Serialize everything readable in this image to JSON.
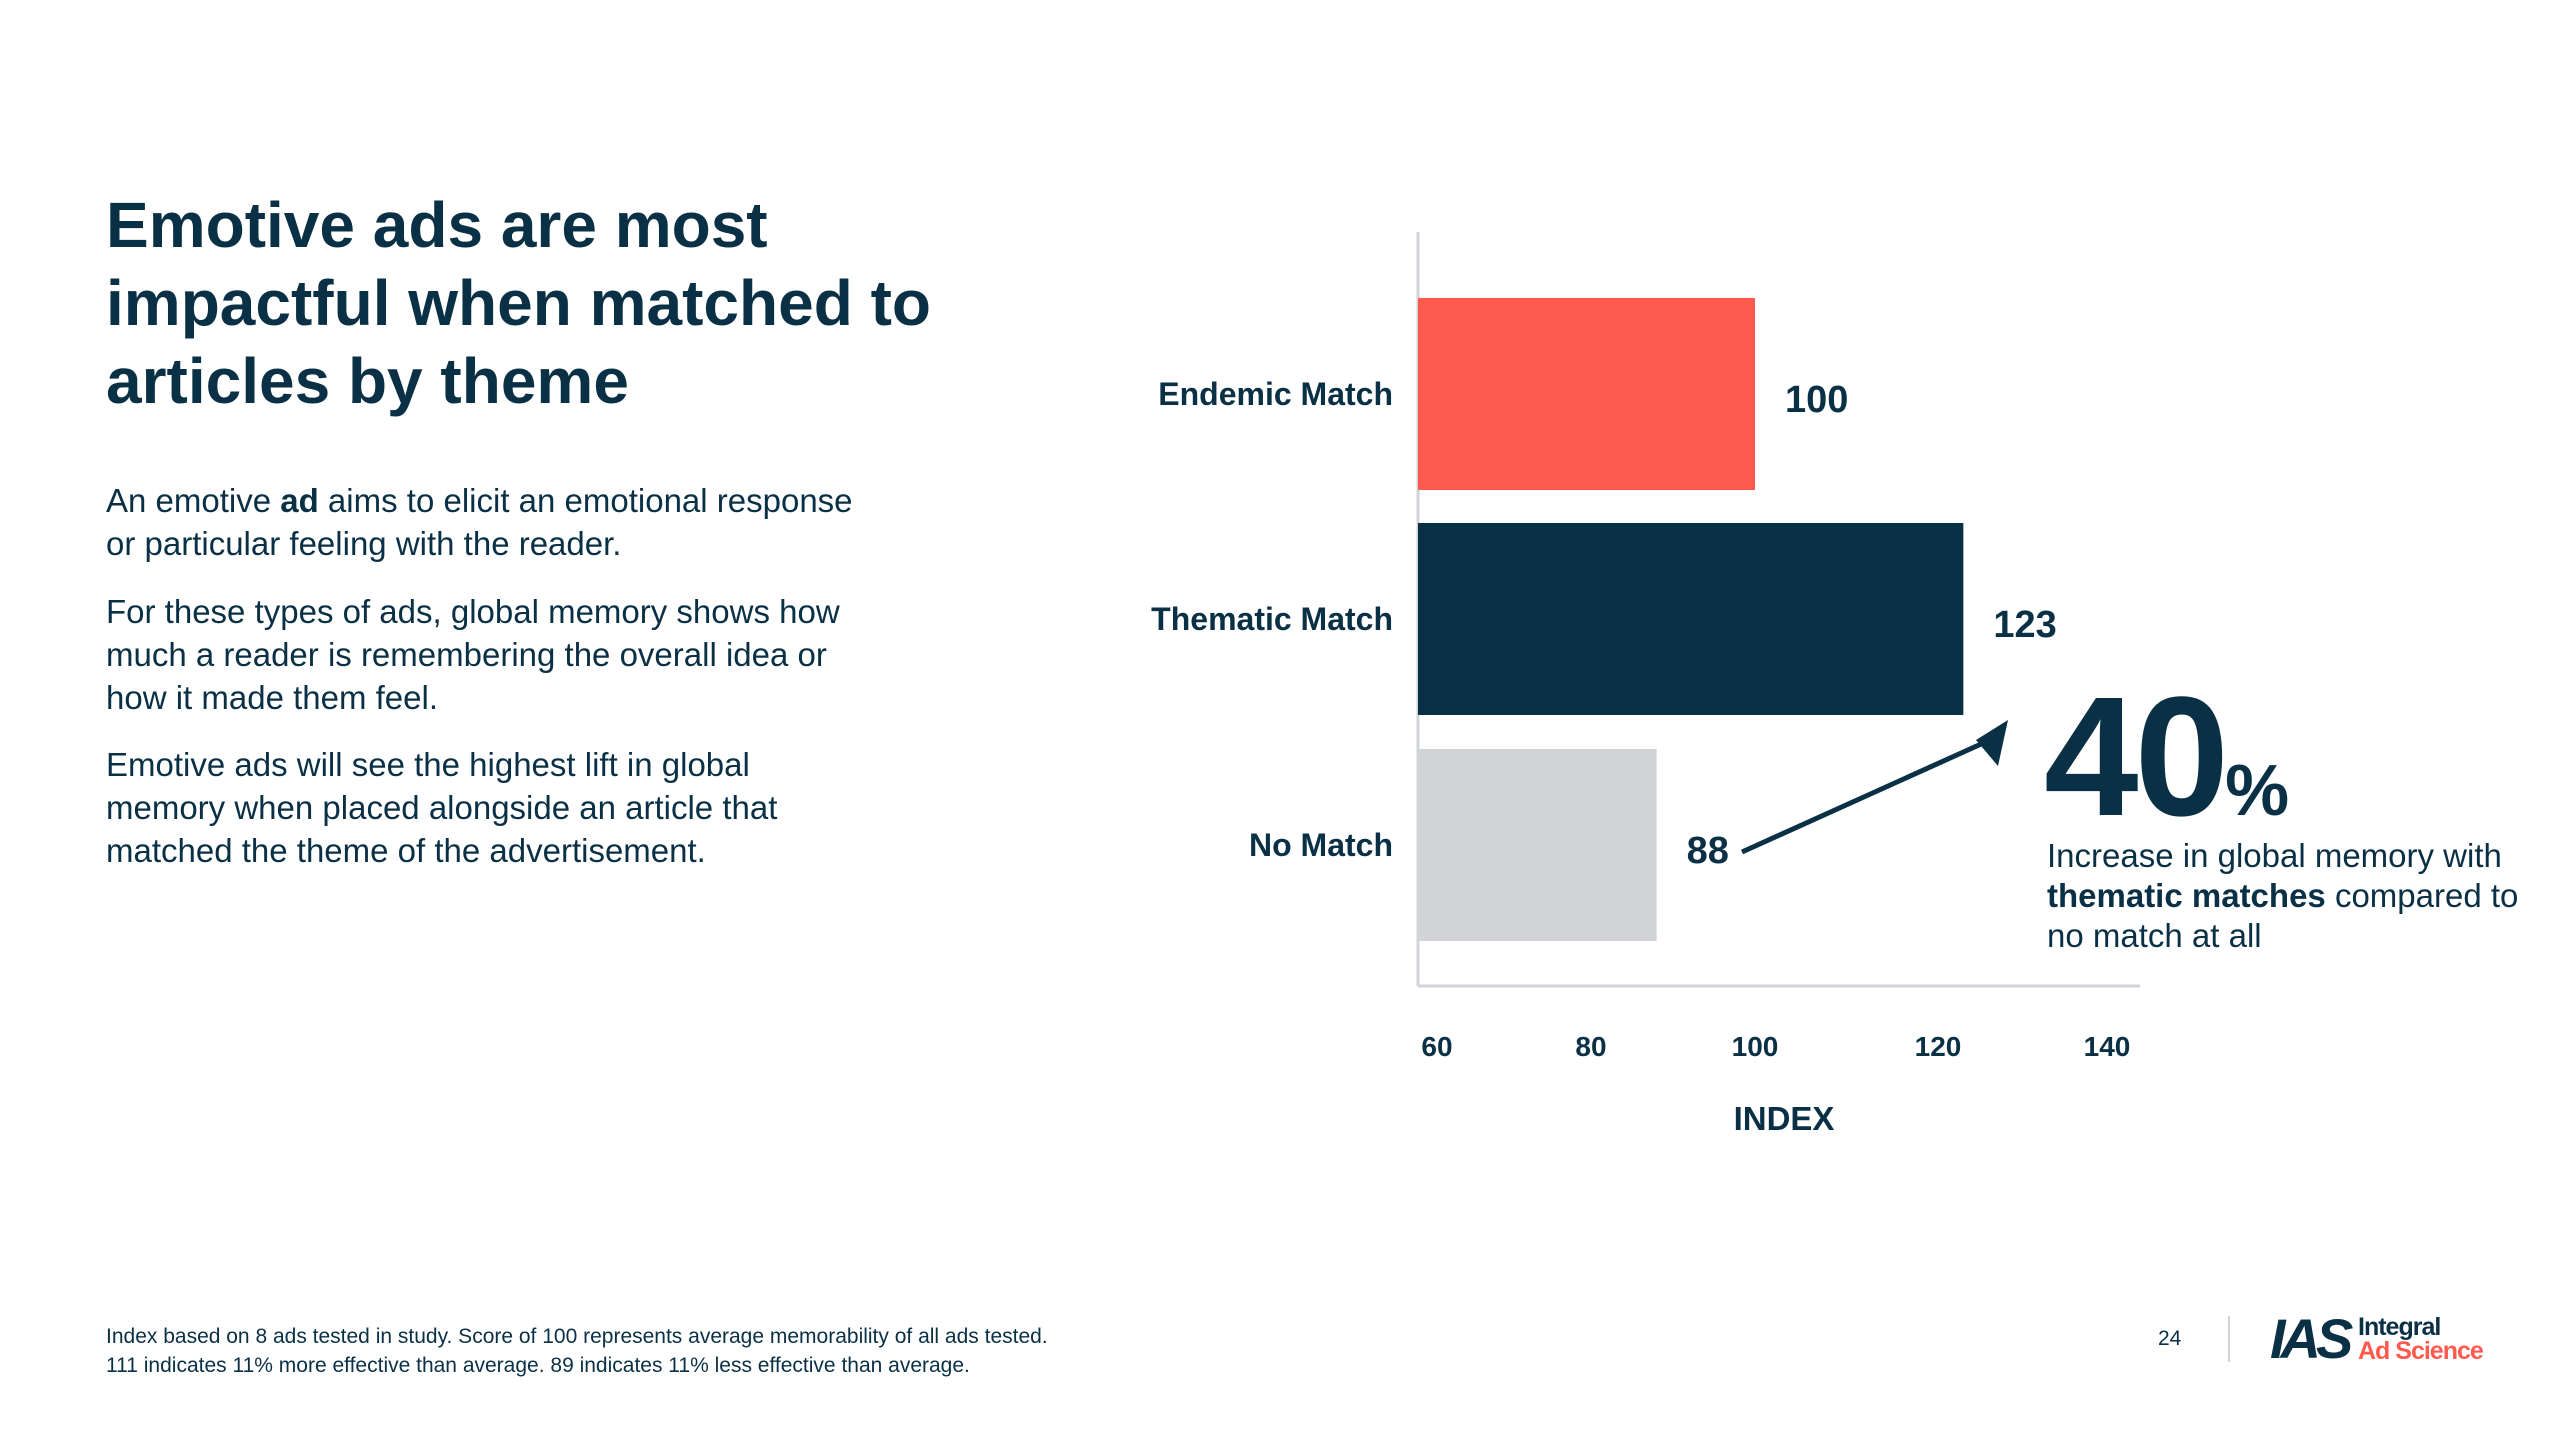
{
  "slide": {
    "title": "Emotive ads are most impactful when matched to articles by theme",
    "paragraphs": {
      "p1_before": "An emotive ",
      "p1_bold": "ad",
      "p1_after": " aims to elicit an emotional response or particular feeling with the reader.",
      "p2": "For these types of ads, global memory shows how much a reader is remembering the overall idea or how it made them feel.",
      "p3": "Emotive ads will see the highest lift in global memory when placed alongside an article that matched the theme of the advertisement."
    },
    "callout": {
      "number": "40",
      "unit": "%",
      "line1": "Increase in global memory with ",
      "bold": "thematic matches",
      "line2": " compared to no match at all"
    },
    "footnote": {
      "line1": "Index based on 8 ads tested in study. Score of 100 represents average memorability of all ads tested.",
      "line2": "111 indicates 11% more effective than average. 89 indicates 11% less effective than average."
    },
    "page_number": "24",
    "logo": {
      "mark": "IAS",
      "line1": "Integral",
      "line2": "Ad Science"
    }
  },
  "colors": {
    "navy": "#0a3046",
    "coral": "#ff5a4e",
    "gray": "#d1d3d6",
    "axis": "#d0d4d8"
  },
  "chart_data": {
    "type": "bar",
    "orientation": "horizontal",
    "categories": [
      "Endemic Match",
      "Thematic Match",
      "No Match"
    ],
    "values": [
      100,
      123,
      88
    ],
    "bar_colors": [
      "#ff5a4e",
      "#0a3046",
      "#d1d3d6"
    ],
    "xlabel": "INDEX",
    "ylabel": "",
    "xlim": [
      60,
      140
    ],
    "xticks": [
      "60",
      "80",
      "100",
      "120",
      "140"
    ],
    "grid": false,
    "legend": "none",
    "annotation": "arrow from No Match value label to Thematic Match bar indicating 40% increase"
  }
}
